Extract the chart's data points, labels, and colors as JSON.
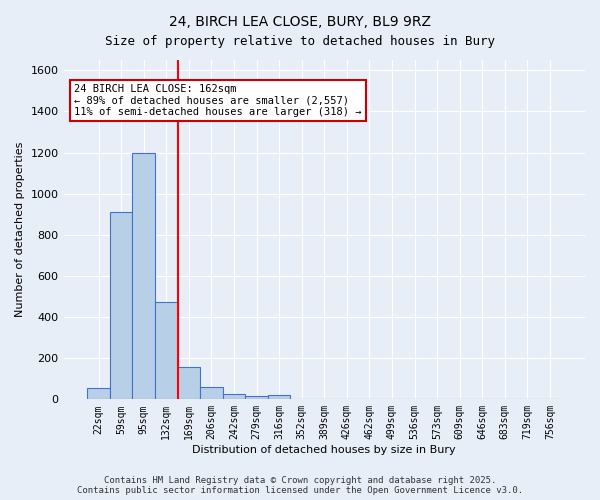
{
  "title1": "24, BIRCH LEA CLOSE, BURY, BL9 9RZ",
  "title2": "Size of property relative to detached houses in Bury",
  "xlabel": "Distribution of detached houses by size in Bury",
  "ylabel": "Number of detached properties",
  "bin_labels": [
    "22sqm",
    "59sqm",
    "95sqm",
    "132sqm",
    "169sqm",
    "206sqm",
    "242sqm",
    "279sqm",
    "316sqm",
    "352sqm",
    "389sqm",
    "426sqm",
    "462sqm",
    "499sqm",
    "536sqm",
    "573sqm",
    "609sqm",
    "646sqm",
    "683sqm",
    "719sqm",
    "756sqm"
  ],
  "bar_values": [
    55,
    910,
    1200,
    475,
    155,
    60,
    28,
    15,
    20,
    0,
    0,
    0,
    0,
    0,
    0,
    0,
    0,
    0,
    0,
    0,
    0
  ],
  "bar_color": "#b8cfe8",
  "bar_edge_color": "#4472c4",
  "background_color": "#e8eef8",
  "grid_color": "#ffffff",
  "red_line_x": 4,
  "annotation_text": "24 BIRCH LEA CLOSE: 162sqm\n← 89% of detached houses are smaller (2,557)\n11% of semi-detached houses are larger (318) →",
  "annotation_box_color": "#ffffff",
  "annotation_box_edge": "#cc0000",
  "ylim": [
    0,
    1650
  ],
  "yticks": [
    0,
    200,
    400,
    600,
    800,
    1000,
    1200,
    1400,
    1600
  ],
  "footer": "Contains HM Land Registry data © Crown copyright and database right 2025.\nContains public sector information licensed under the Open Government Licence v3.0."
}
